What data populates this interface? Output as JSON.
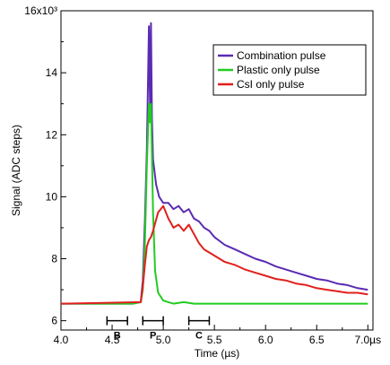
{
  "chart_data": {
    "type": "line",
    "xlabel": "Time (µs)",
    "ylabel": "Signal (ADC steps)",
    "xlim": [
      4.0,
      7.05
    ],
    "ylim": [
      5.7,
      16.0
    ],
    "x_ticks": [
      4.0,
      4.5,
      5.0,
      5.5,
      6.0,
      6.5,
      7.0
    ],
    "x_tick_labels": [
      "4.0",
      "4.5",
      "5.0",
      "5.5",
      "6.0",
      "6.5",
      "7.0µs"
    ],
    "y_ticks": [
      6,
      8,
      10,
      12,
      14,
      16
    ],
    "y_tick_labels": [
      "6",
      "8",
      "10",
      "12",
      "14",
      "16x10³"
    ],
    "grid": false,
    "legend": "top-right",
    "series": [
      {
        "name": "Combination pulse",
        "color": "#5b2bb3",
        "x": [
          4.0,
          4.7,
          4.78,
          4.8,
          4.82,
          4.84,
          4.86,
          4.87,
          4.88,
          4.89,
          4.9,
          4.93,
          4.96,
          5.0,
          5.05,
          5.1,
          5.15,
          5.2,
          5.25,
          5.3,
          5.35,
          5.4,
          5.45,
          5.5,
          5.6,
          5.7,
          5.8,
          5.9,
          6.0,
          6.1,
          6.2,
          6.3,
          6.4,
          6.5,
          6.6,
          6.7,
          6.8,
          6.9,
          7.0
        ],
        "y": [
          6.55,
          6.55,
          6.6,
          7.3,
          9.2,
          11.5,
          15.5,
          13.0,
          15.6,
          12.5,
          11.2,
          10.4,
          10.0,
          9.8,
          9.8,
          9.6,
          9.7,
          9.5,
          9.6,
          9.3,
          9.2,
          9.0,
          8.9,
          8.7,
          8.45,
          8.3,
          8.15,
          8.0,
          7.9,
          7.75,
          7.65,
          7.55,
          7.45,
          7.35,
          7.3,
          7.2,
          7.15,
          7.05,
          7.0
        ]
      },
      {
        "name": "Plastic only pulse",
        "color": "#22cc22",
        "x": [
          4.0,
          4.7,
          4.78,
          4.8,
          4.82,
          4.84,
          4.86,
          4.87,
          4.88,
          4.9,
          4.92,
          4.95,
          5.0,
          5.05,
          5.1,
          5.2,
          5.3,
          5.5,
          6.0,
          6.5,
          7.0
        ],
        "y": [
          6.55,
          6.55,
          6.6,
          7.0,
          8.5,
          11.0,
          13.0,
          12.4,
          13.0,
          9.5,
          7.6,
          6.9,
          6.65,
          6.6,
          6.55,
          6.6,
          6.55,
          6.55,
          6.55,
          6.55,
          6.55
        ]
      },
      {
        "name": "CsI only pulse",
        "color": "#e0201c",
        "x": [
          4.0,
          4.78,
          4.8,
          4.82,
          4.84,
          4.86,
          4.88,
          4.9,
          4.95,
          5.0,
          5.05,
          5.1,
          5.15,
          5.2,
          5.25,
          5.3,
          5.35,
          5.4,
          5.5,
          5.6,
          5.7,
          5.8,
          5.9,
          6.0,
          6.1,
          6.2,
          6.3,
          6.4,
          6.5,
          6.6,
          6.7,
          6.8,
          6.9,
          7.0
        ],
        "y": [
          6.55,
          6.6,
          7.1,
          7.8,
          8.4,
          8.6,
          8.7,
          8.9,
          9.5,
          9.7,
          9.3,
          9.0,
          9.1,
          8.9,
          9.1,
          8.8,
          8.5,
          8.3,
          8.1,
          7.9,
          7.8,
          7.65,
          7.55,
          7.45,
          7.35,
          7.3,
          7.2,
          7.15,
          7.05,
          7.0,
          6.95,
          6.9,
          6.9,
          6.85
        ]
      }
    ],
    "annotations": [
      {
        "label": "B",
        "x_start": 4.45,
        "x_end": 4.65,
        "y": 6.0
      },
      {
        "label": "P",
        "x_start": 4.8,
        "x_end": 5.0,
        "y": 6.0
      },
      {
        "label": "C",
        "x_start": 5.25,
        "x_end": 5.45,
        "y": 6.0
      }
    ]
  }
}
